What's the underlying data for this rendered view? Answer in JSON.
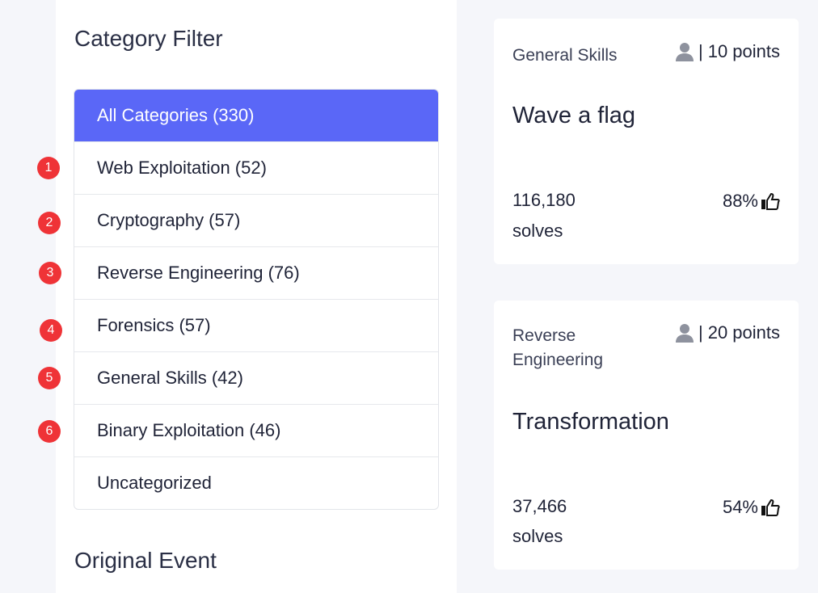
{
  "sidebar": {
    "heading": "Category Filter",
    "categories": [
      {
        "label": "All Categories  (330)",
        "active": true
      },
      {
        "label": "Web Exploitation (52)",
        "badge": "1"
      },
      {
        "label": "Cryptography (57)",
        "badge": "2"
      },
      {
        "label": "Reverse Engineering (76)",
        "badge": "3"
      },
      {
        "label": "Forensics (57)",
        "badge": "4"
      },
      {
        "label": "General Skills (42)",
        "badge": "5"
      },
      {
        "label": "Binary Exploitation (46)",
        "badge": "6"
      },
      {
        "label": "Uncategorized"
      }
    ],
    "heading2": "Original Event"
  },
  "colors": {
    "accent": "#5a67f7",
    "badge": "#ef3337"
  },
  "challenges": [
    {
      "category": "General Skills",
      "points": "10 points",
      "title": "Wave a flag",
      "solves": "116,180",
      "solves_label": "solves",
      "rating": "88%"
    },
    {
      "category": "Reverse Engineering",
      "points": "20 points",
      "title": "Transformation",
      "solves": "37,466",
      "solves_label": "solves",
      "rating": "54%"
    }
  ]
}
